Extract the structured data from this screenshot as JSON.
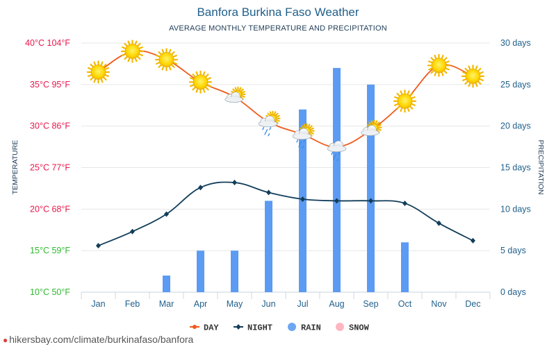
{
  "header": {
    "title": "Banfora Burkina Faso Weather",
    "subtitle": "AVERAGE MONTHLY TEMPERATURE AND PRECIPITATION"
  },
  "footer": {
    "link_text": "hikersbay.com/climate/burkinafaso/banfora"
  },
  "colors": {
    "day": "#f05a1a",
    "night": "#123d5a",
    "rain": "#5b9bf3",
    "snow": "#ffb6c1",
    "grid": "#e6e6e6",
    "month_text": "#1f5f8b",
    "precip_text": "#1f5f8b",
    "temp_red": "#e8174b",
    "temp_green": "#2fb82f"
  },
  "chart_data": {
    "type": "line",
    "x": [
      "Jan",
      "Feb",
      "Mar",
      "Apr",
      "May",
      "Jun",
      "Jul",
      "Aug",
      "Sep",
      "Oct",
      "Nov",
      "Dec"
    ],
    "series": [
      {
        "name": "DAY",
        "type": "line",
        "axis": "temperature_c",
        "values": [
          36.5,
          39,
          38,
          35.3,
          33.5,
          30.5,
          29,
          27.5,
          29.5,
          33,
          37.3,
          36
        ],
        "markers": [
          "sun",
          "sun",
          "sun",
          "sun",
          "cloud-sun",
          "cloud-sun-rain",
          "cloud-sun-rain",
          "cloud-rain",
          "cloud-sun",
          "sun",
          "sun",
          "sun"
        ]
      },
      {
        "name": "NIGHT",
        "type": "line",
        "axis": "temperature_c",
        "values": [
          15.6,
          17.3,
          19.4,
          22.6,
          23.2,
          22,
          21.2,
          21,
          21,
          20.7,
          18.3,
          16.2
        ]
      },
      {
        "name": "RAIN",
        "type": "bar",
        "axis": "precipitation_days",
        "values": [
          0,
          0,
          2,
          5,
          5,
          11,
          22,
          27,
          25,
          6,
          0,
          0
        ]
      },
      {
        "name": "SNOW",
        "type": "bar",
        "axis": "precipitation_days",
        "values": [
          0,
          0,
          0,
          0,
          0,
          0,
          0,
          0,
          0,
          0,
          0,
          0
        ]
      }
    ],
    "y_left": {
      "label": "TEMPERATURE",
      "ylim": [
        10,
        40
      ],
      "ticks": [
        "10°C 50°F",
        "15°C 59°F",
        "20°C 68°F",
        "25°C 77°F",
        "30°C 86°F",
        "35°C 95°F",
        "40°C 104°F"
      ],
      "tick_colors": [
        "#2fb82f",
        "#2fb82f",
        "#e8174b",
        "#e8174b",
        "#e8174b",
        "#e8174b",
        "#e8174b"
      ]
    },
    "y_right": {
      "label": "PRECIPITATION",
      "ylim": [
        0,
        30
      ],
      "ticks": [
        "0 days",
        "5 days",
        "10 days",
        "15 days",
        "20 days",
        "25 days",
        "30 days"
      ]
    },
    "legend": [
      {
        "label": "DAY",
        "kind": "line-dot",
        "color": "#f05a1a"
      },
      {
        "label": "NIGHT",
        "kind": "line-diamond",
        "color": "#123d5a"
      },
      {
        "label": "RAIN",
        "kind": "circle",
        "color": "#6ea6f0"
      },
      {
        "label": "SNOW",
        "kind": "circle",
        "color": "#ffb6c1"
      }
    ],
    "legend_position": "bottom",
    "grid": true
  }
}
